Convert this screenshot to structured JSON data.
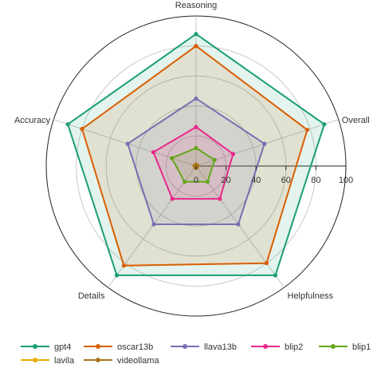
{
  "chart_data": {
    "type": "radar",
    "title": "",
    "axes": [
      "Reasoning",
      "Overall",
      "Helpfulness",
      "Details",
      "Accuracy"
    ],
    "rlim": [
      0,
      100
    ],
    "r_ticks": [
      "0",
      "20",
      "40",
      "60",
      "80",
      "100"
    ],
    "r_tick_values": [
      0,
      20,
      40,
      60,
      80,
      100
    ],
    "grid": true,
    "legend_position": "bottom",
    "series": [
      {
        "name": "gpt4",
        "color": "#1b9e77",
        "values": [
          88,
          90,
          90,
          90,
          90
        ]
      },
      {
        "name": "oscar13b",
        "color": "#d95f02",
        "values": [
          80,
          78,
          80,
          82,
          80
        ]
      },
      {
        "name": "llava13b",
        "color": "#7570b3",
        "values": [
          45,
          48,
          48,
          48,
          48
        ]
      },
      {
        "name": "blip2",
        "color": "#e7298a",
        "values": [
          26,
          26,
          27,
          27,
          30
        ]
      },
      {
        "name": "blip1",
        "color": "#66a61e",
        "values": [
          12,
          13,
          13,
          13,
          17
        ]
      },
      {
        "name": "lavila",
        "color": "#e6ab02",
        "values": [
          1,
          1,
          1,
          1,
          1
        ]
      },
      {
        "name": "videollama",
        "color": "#a6761d",
        "values": [
          1,
          1,
          1,
          1,
          1
        ]
      }
    ]
  }
}
